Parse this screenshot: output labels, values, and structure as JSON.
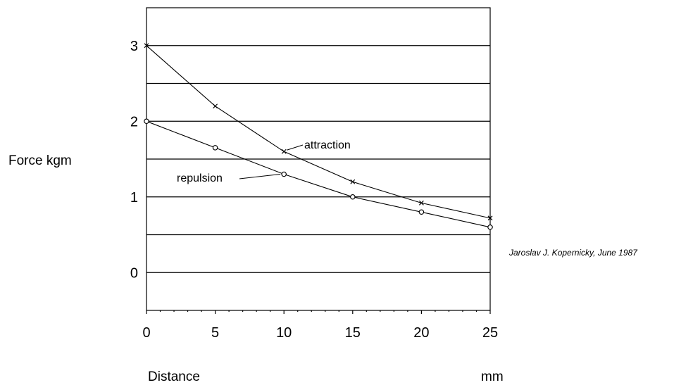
{
  "chart_data": {
    "type": "line",
    "title": "",
    "ylabel": "Force kgm",
    "xlabel": "Distance",
    "xunit": "mm",
    "credit": "Jaroslav J. Kopernicky, June 1987",
    "xlim": [
      0,
      25
    ],
    "ylim": [
      -0.5,
      3.5
    ],
    "x_ticks": [
      0,
      5,
      10,
      15,
      20,
      25
    ],
    "y_ticks": [
      0,
      1,
      2,
      3
    ],
    "y_gridlines": [
      0,
      0.5,
      1,
      1.5,
      2,
      2.5,
      3
    ],
    "grid": "horizontal",
    "series": [
      {
        "name": "attraction",
        "marker": "x",
        "x": [
          0,
          5,
          10,
          15,
          20,
          25
        ],
        "y": [
          3.0,
          2.2,
          1.6,
          1.2,
          0.92,
          0.72
        ]
      },
      {
        "name": "repulsion",
        "marker": "o",
        "x": [
          0,
          5,
          10,
          15,
          20,
          25
        ],
        "y": [
          2.0,
          1.65,
          1.3,
          1.0,
          0.8,
          0.6
        ]
      }
    ]
  }
}
